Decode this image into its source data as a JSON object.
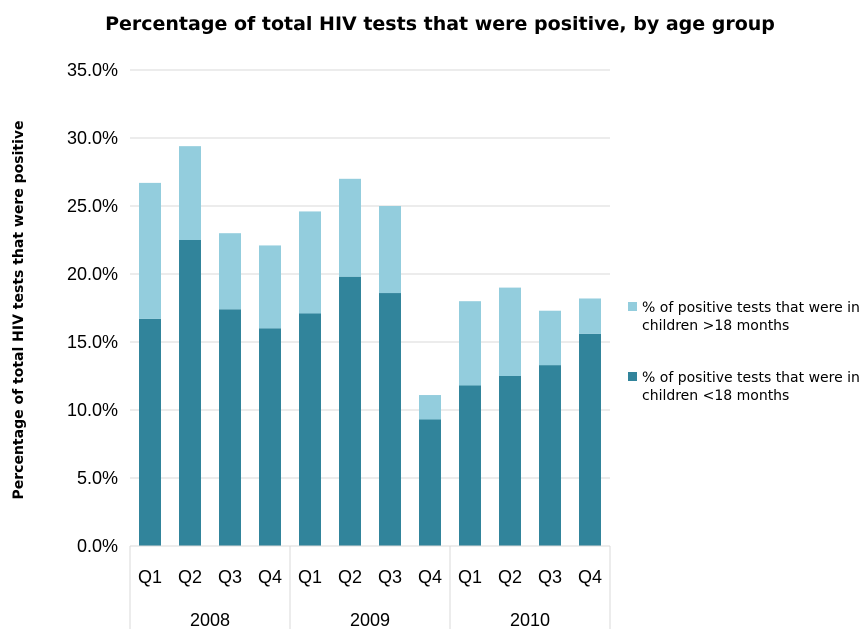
{
  "chart_data": {
    "type": "bar",
    "stacked": true,
    "title": "Percentage of total HIV tests that were positive, by age group",
    "ylabel": "Percentage of total HIV tests that were positive",
    "xlabel": "",
    "ylim": [
      0,
      35
    ],
    "yticks": [
      "0.0%",
      "5.0%",
      "10.0%",
      "15.0%",
      "20.0%",
      "25.0%",
      "30.0%",
      "35.0%"
    ],
    "grid": true,
    "legend_position": "right",
    "categories": [
      "Q1",
      "Q2",
      "Q3",
      "Q4",
      "Q1",
      "Q2",
      "Q3",
      "Q4",
      "Q1",
      "Q2",
      "Q3",
      "Q4"
    ],
    "groups": [
      {
        "label": "2008",
        "count": 4
      },
      {
        "label": "2009",
        "count": 4
      },
      {
        "label": "2010",
        "count": 4
      }
    ],
    "series": [
      {
        "name": "% of positive tests that were in children <18 months",
        "color": "#31849b",
        "values": [
          16.7,
          22.5,
          17.4,
          16.0,
          17.1,
          19.8,
          18.6,
          9.3,
          11.8,
          12.5,
          13.3,
          15.6
        ]
      },
      {
        "name": "% of positive tests that were in children >18 months",
        "color": "#93cddd",
        "values": [
          10.0,
          6.9,
          5.6,
          6.1,
          7.5,
          7.2,
          6.4,
          1.8,
          6.2,
          6.5,
          4.0,
          2.6
        ]
      }
    ],
    "legend": [
      {
        "line1": "% of positive tests that were in",
        "line2": "children >18 months",
        "color": "#93cddd"
      },
      {
        "line1": "% of positive tests that were in",
        "line2": "children <18 months",
        "color": "#31849b"
      }
    ]
  }
}
